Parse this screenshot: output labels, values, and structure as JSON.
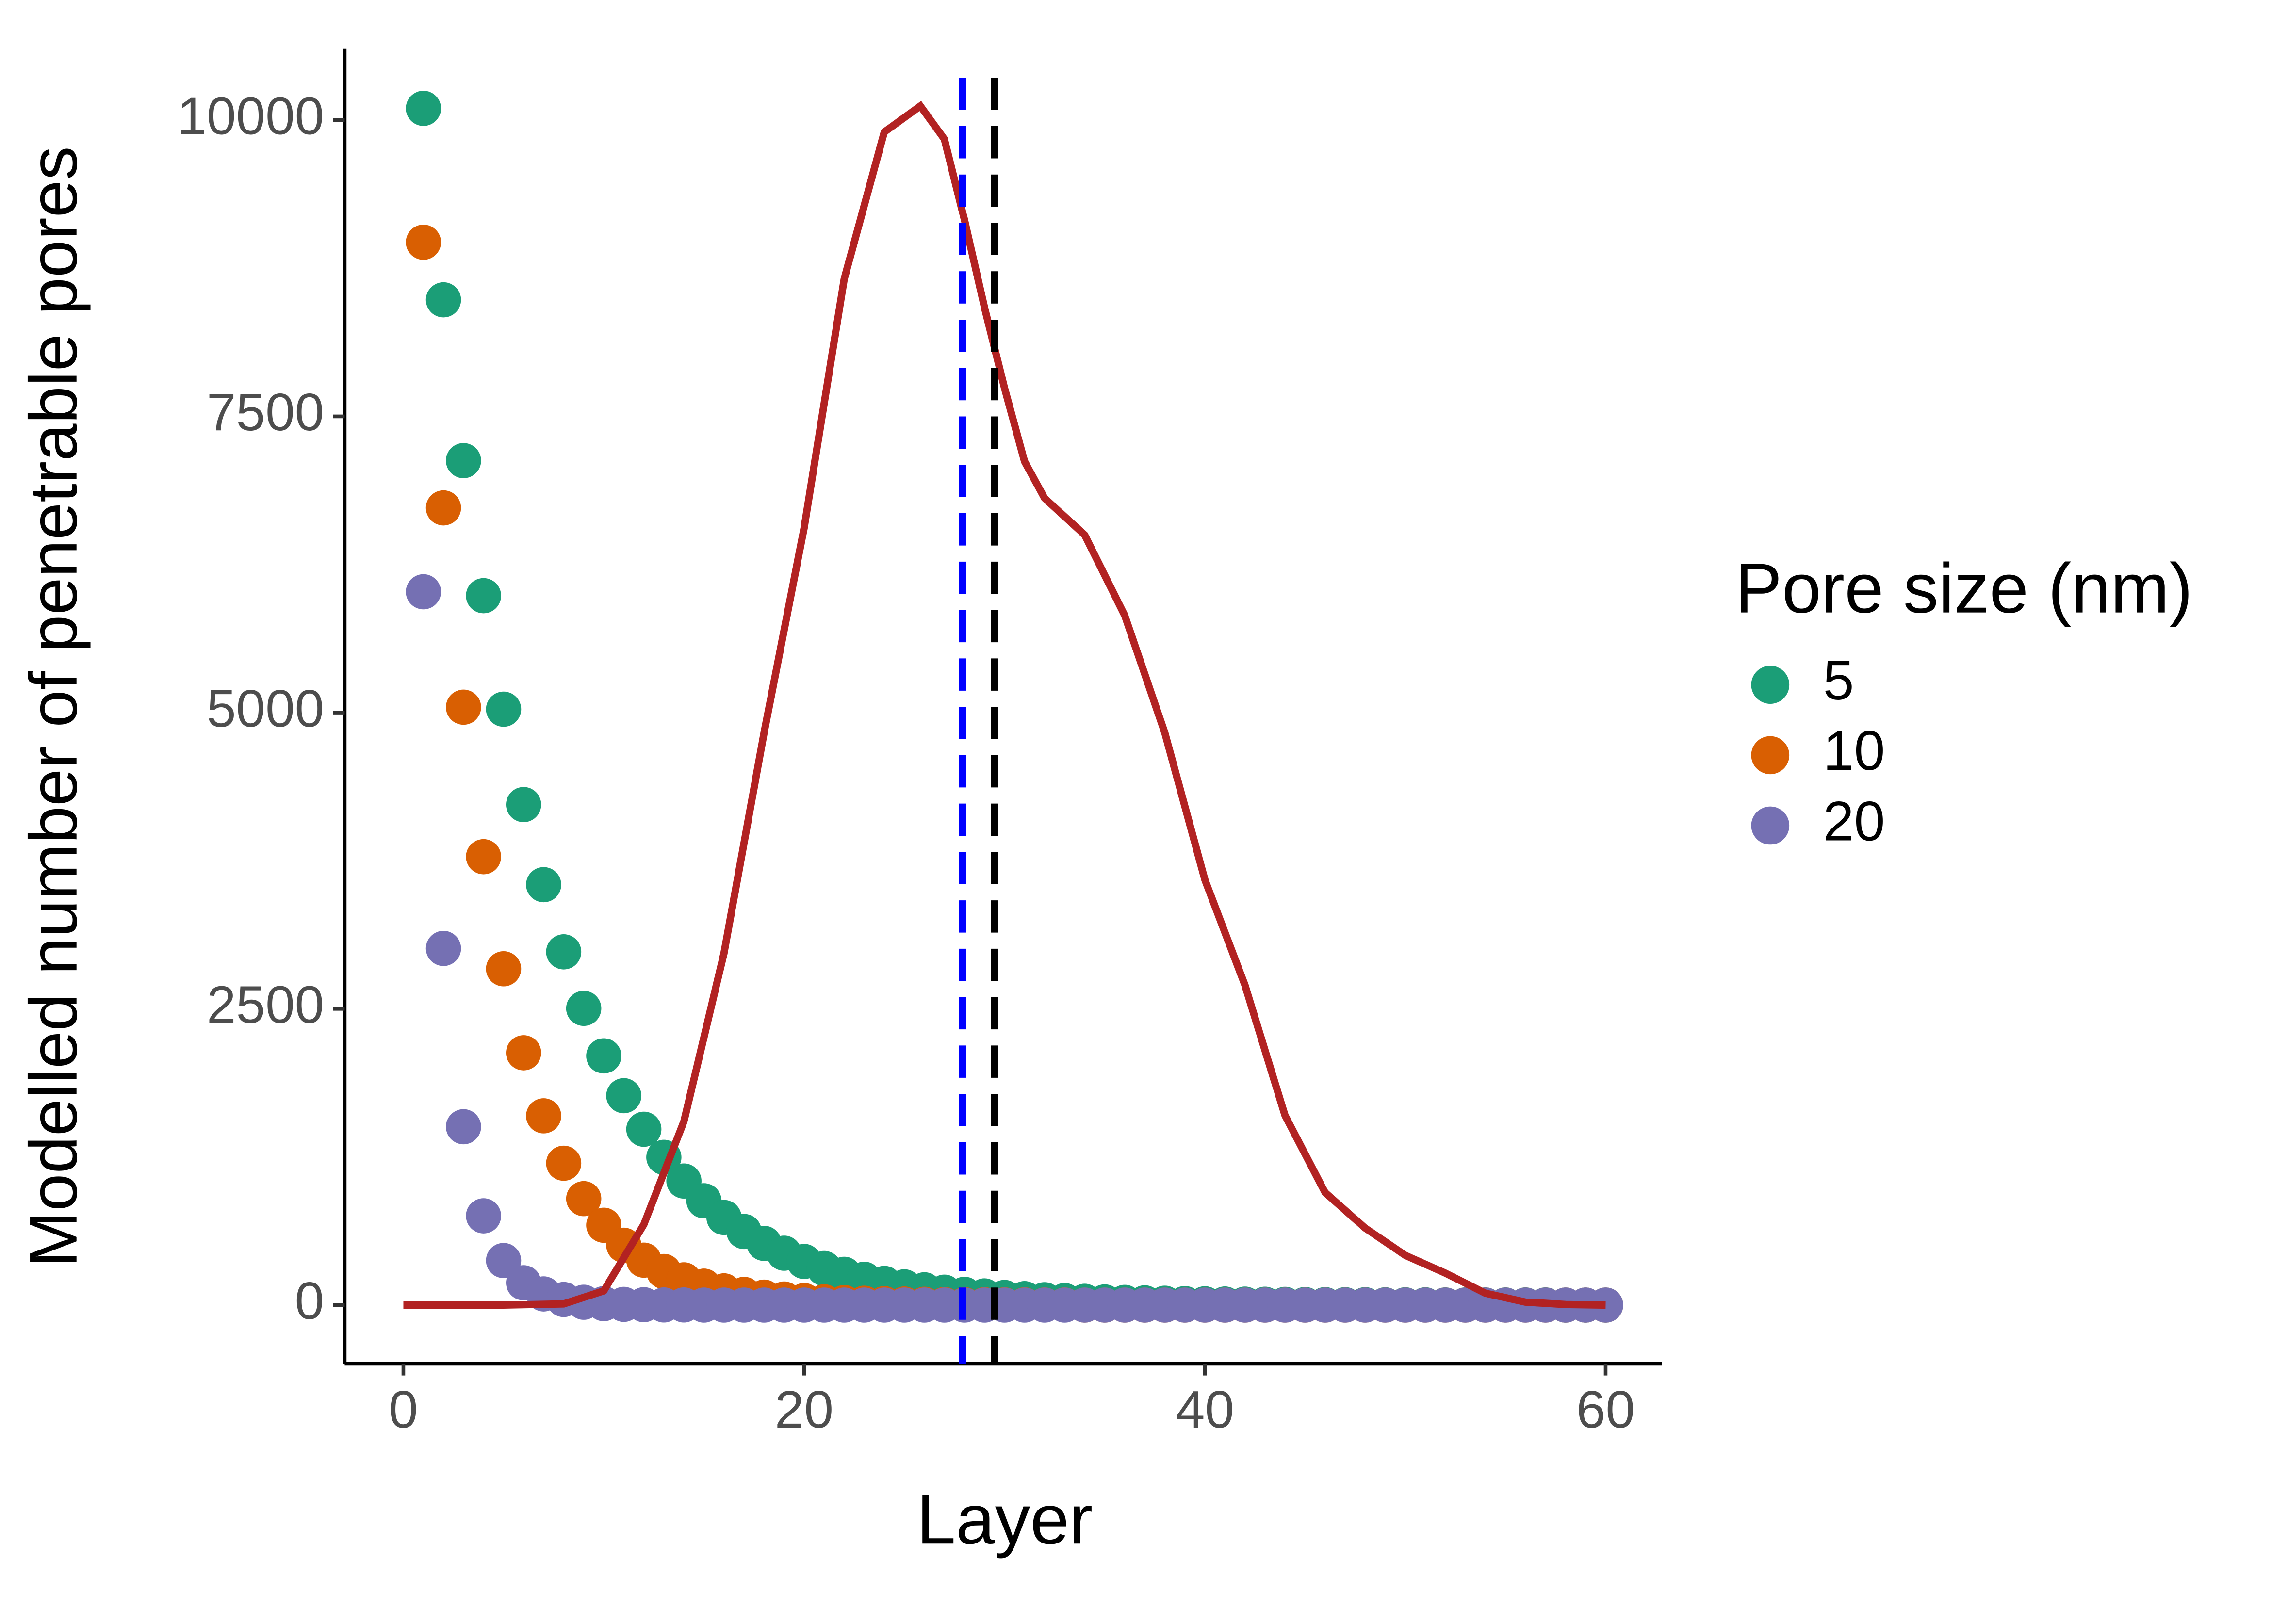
{
  "chart_data": {
    "type": "scatter",
    "x_label": "Layer",
    "y_label": "Modelled number of penetrable pores",
    "legend_title": "Pore size (nm)",
    "legend_position": "right",
    "x": [
      1,
      2,
      3,
      4,
      5,
      6,
      7,
      8,
      9,
      10,
      11,
      12,
      13,
      14,
      15,
      16,
      17,
      18,
      19,
      20,
      21,
      22,
      23,
      24,
      25,
      26,
      27,
      28,
      29,
      30,
      31,
      32,
      33,
      34,
      35,
      36,
      37,
      38,
      39,
      40,
      41,
      42,
      43,
      44,
      45,
      46,
      47,
      48,
      49,
      50,
      51,
      52,
      53,
      54,
      55,
      56,
      57,
      58,
      59,
      60
    ],
    "series": [
      {
        "name": "5",
        "color": "#1b9e77",
        "values": [
          10100,
          8484,
          7127,
          5987,
          5029,
          4224,
          3548,
          2981,
          2504,
          2103,
          1767,
          1484,
          1247,
          1047,
          880,
          739,
          621,
          521,
          438,
          368,
          309,
          260,
          218,
          183,
          154,
          129,
          109,
          91,
          77,
          64,
          54,
          45,
          38,
          32,
          27,
          23,
          19,
          16,
          13,
          11,
          9,
          8,
          7,
          6,
          5,
          4,
          3,
          3,
          2,
          2,
          2,
          1,
          1,
          1,
          1,
          1,
          1,
          0,
          0,
          0
        ]
      },
      {
        "name": "10",
        "color": "#d95f02",
        "values": [
          8970,
          6728,
          5046,
          3784,
          2838,
          2129,
          1597,
          1197,
          898,
          674,
          505,
          379,
          284,
          213,
          160,
          120,
          90,
          67,
          51,
          38,
          28,
          21,
          16,
          12,
          9,
          7,
          5,
          4,
          3,
          2,
          2,
          1,
          1,
          0,
          0,
          0,
          0,
          0,
          0,
          0,
          0,
          0,
          0,
          0,
          0,
          0,
          0,
          0,
          0,
          0,
          0,
          0,
          0,
          0,
          0,
          0,
          0,
          0,
          0,
          0
        ]
      },
      {
        "name": "20",
        "color": "#7570b3",
        "values": [
          6020,
          3010,
          1505,
          753,
          376,
          188,
          94,
          47,
          24,
          12,
          6,
          3,
          1,
          1,
          0,
          0,
          0,
          0,
          0,
          0,
          0,
          0,
          0,
          0,
          0,
          0,
          0,
          0,
          0,
          0,
          0,
          0,
          0,
          0,
          0,
          0,
          0,
          0,
          0,
          0,
          0,
          0,
          0,
          0,
          0,
          0,
          0,
          0,
          0,
          0,
          0,
          0,
          0,
          0,
          0,
          0,
          0,
          0,
          0,
          0
        ]
      }
    ],
    "line": {
      "color": "#b22222",
      "x": [
        0,
        5,
        8,
        10,
        12,
        14,
        16,
        18,
        20,
        22,
        24,
        25.8,
        27,
        28,
        29,
        30,
        31,
        32,
        34,
        36,
        38,
        40,
        42,
        44,
        46,
        48,
        50,
        52,
        54,
        56,
        58,
        60
      ],
      "values": [
        0,
        0,
        10,
        120,
        680,
        1550,
        2970,
        4830,
        6560,
        8660,
        9900,
        10120,
        9840,
        9160,
        8420,
        7740,
        7120,
        6810,
        6500,
        5820,
        4830,
        3590,
        2700,
        1600,
        950,
        650,
        420,
        270,
        100,
        25,
        5,
        0
      ]
    },
    "vlines": [
      {
        "x": 27.9,
        "color": "#0000ff"
      },
      {
        "x": 29.5,
        "color": "#000000"
      }
    ],
    "xlim": [
      -2.93,
      62.8
    ],
    "xticks": [
      0,
      20,
      40,
      60
    ],
    "ylim": [
      -495,
      10606
    ],
    "yticks": [
      0,
      2500,
      5000,
      7500,
      10000
    ],
    "grid": false
  }
}
